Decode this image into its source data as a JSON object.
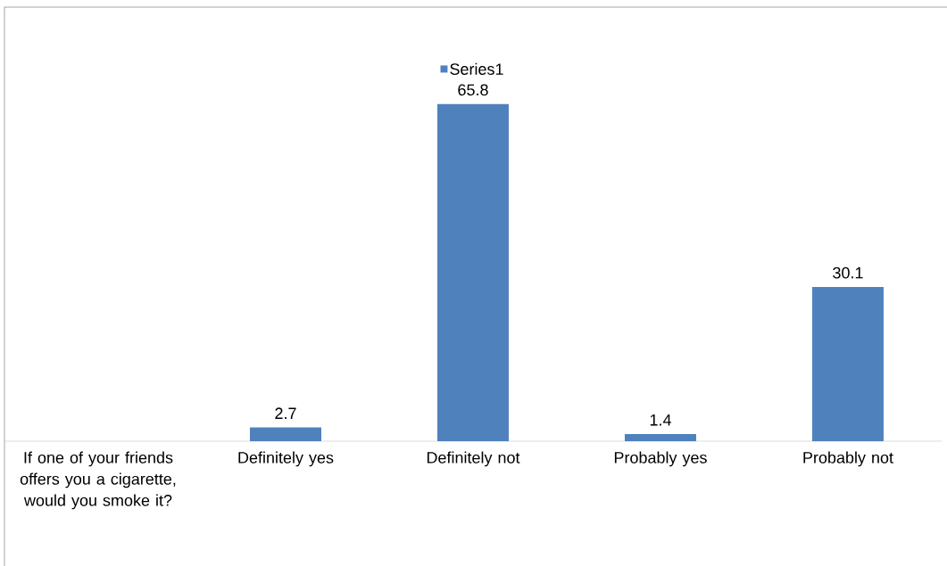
{
  "chart_data": {
    "type": "bar",
    "categories": [
      "If one of your friends offers you a cigarette, would you smoke it?",
      "Definitely yes",
      "Definitely not",
      "Probably yes",
      "Probably not"
    ],
    "series": [
      {
        "name": "Series1",
        "color": "#4f81bd",
        "values": [
          null,
          2.7,
          65.8,
          1.4,
          30.1
        ]
      }
    ],
    "data_labels": true,
    "legend": "top"
  }
}
